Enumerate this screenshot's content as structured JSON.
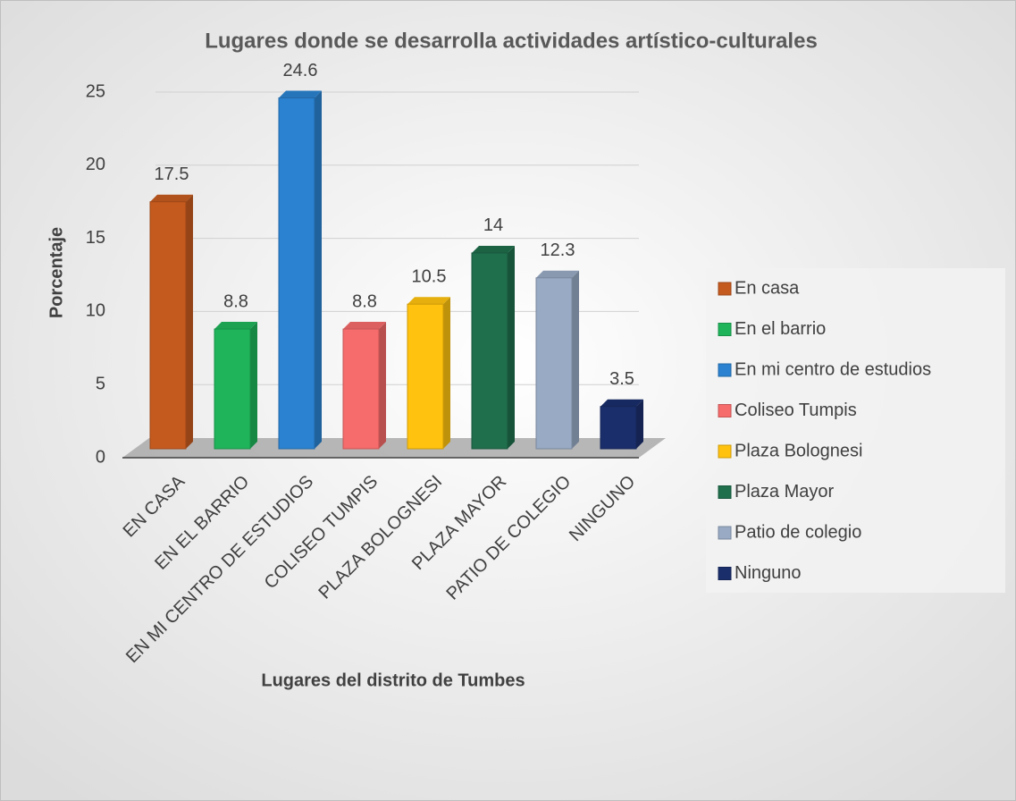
{
  "chart_data": {
    "type": "bar3d",
    "title": "Lugares donde se desarrolla actividades artístico-culturales",
    "x_label": "Lugares del distrito de Tumbes",
    "y_label": "Porcentaje",
    "categories": [
      "EN CASA",
      "EN EL BARRIO",
      "EN MI CENTRO DE ESTUDIOS",
      "COLISEO TUMPIS",
      "PLAZA BOLOGNESI",
      "PLAZA MAYOR",
      "PATIO DE COLEGIO",
      "NINGUNO"
    ],
    "series": [
      {
        "name": "En casa",
        "color": "#c55a1e",
        "values": [
          17.5,
          null,
          null,
          null,
          null,
          null,
          null,
          null
        ]
      },
      {
        "name": "En el barrio",
        "color": "#1fb45a",
        "values": [
          null,
          8.8,
          null,
          null,
          null,
          null,
          null,
          null
        ]
      },
      {
        "name": "En mi centro de estudios",
        "color": "#2a82d0",
        "values": [
          null,
          null,
          24.6,
          null,
          null,
          null,
          null,
          null
        ]
      },
      {
        "name": "Coliseo Tumpis",
        "color": "#f66b6b",
        "values": [
          null,
          null,
          null,
          8.8,
          null,
          null,
          null,
          null
        ]
      },
      {
        "name": "Plaza Bolognesi",
        "color": "#ffc20e",
        "values": [
          null,
          null,
          null,
          null,
          10.5,
          null,
          null,
          null
        ]
      },
      {
        "name": "Plaza Mayor",
        "color": "#1f6e4c",
        "values": [
          null,
          null,
          null,
          null,
          null,
          14,
          null,
          null
        ]
      },
      {
        "name": "Patio de colegio",
        "color": "#98aac4",
        "values": [
          null,
          null,
          null,
          null,
          null,
          null,
          12.3,
          null
        ]
      },
      {
        "name": "Ninguno",
        "color": "#1a2e6c",
        "values": [
          null,
          null,
          null,
          null,
          null,
          null,
          null,
          3.5
        ]
      }
    ],
    "ylim": [
      0,
      25
    ],
    "yticks": [
      0,
      5,
      10,
      15,
      20,
      25
    ],
    "grid": true,
    "legend": "right"
  }
}
